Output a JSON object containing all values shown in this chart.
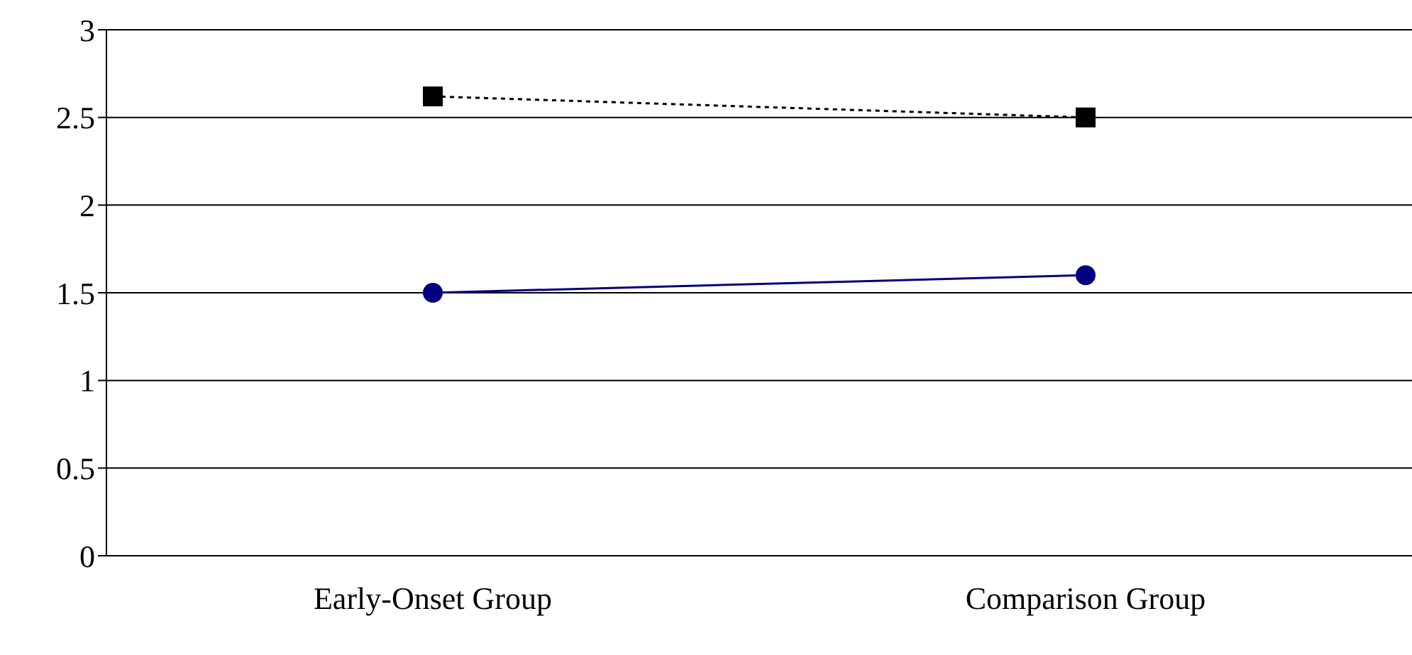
{
  "chart_data": {
    "type": "line",
    "categories": [
      "Early-Onset Group",
      "Comparison Group"
    ],
    "series": [
      {
        "color": "#000000",
        "values": [
          2.62,
          2.5
        ],
        "marker": "square",
        "line_style": "dotted"
      },
      {
        "color": "#000080",
        "values": [
          1.5,
          1.6
        ],
        "marker": "circle",
        "line_style": "solid"
      }
    ],
    "ylim": [
      0,
      3
    ],
    "yticks": [
      0,
      0.5,
      1,
      1.5,
      2,
      2.5,
      3
    ],
    "grid": "y",
    "legend": false
  }
}
